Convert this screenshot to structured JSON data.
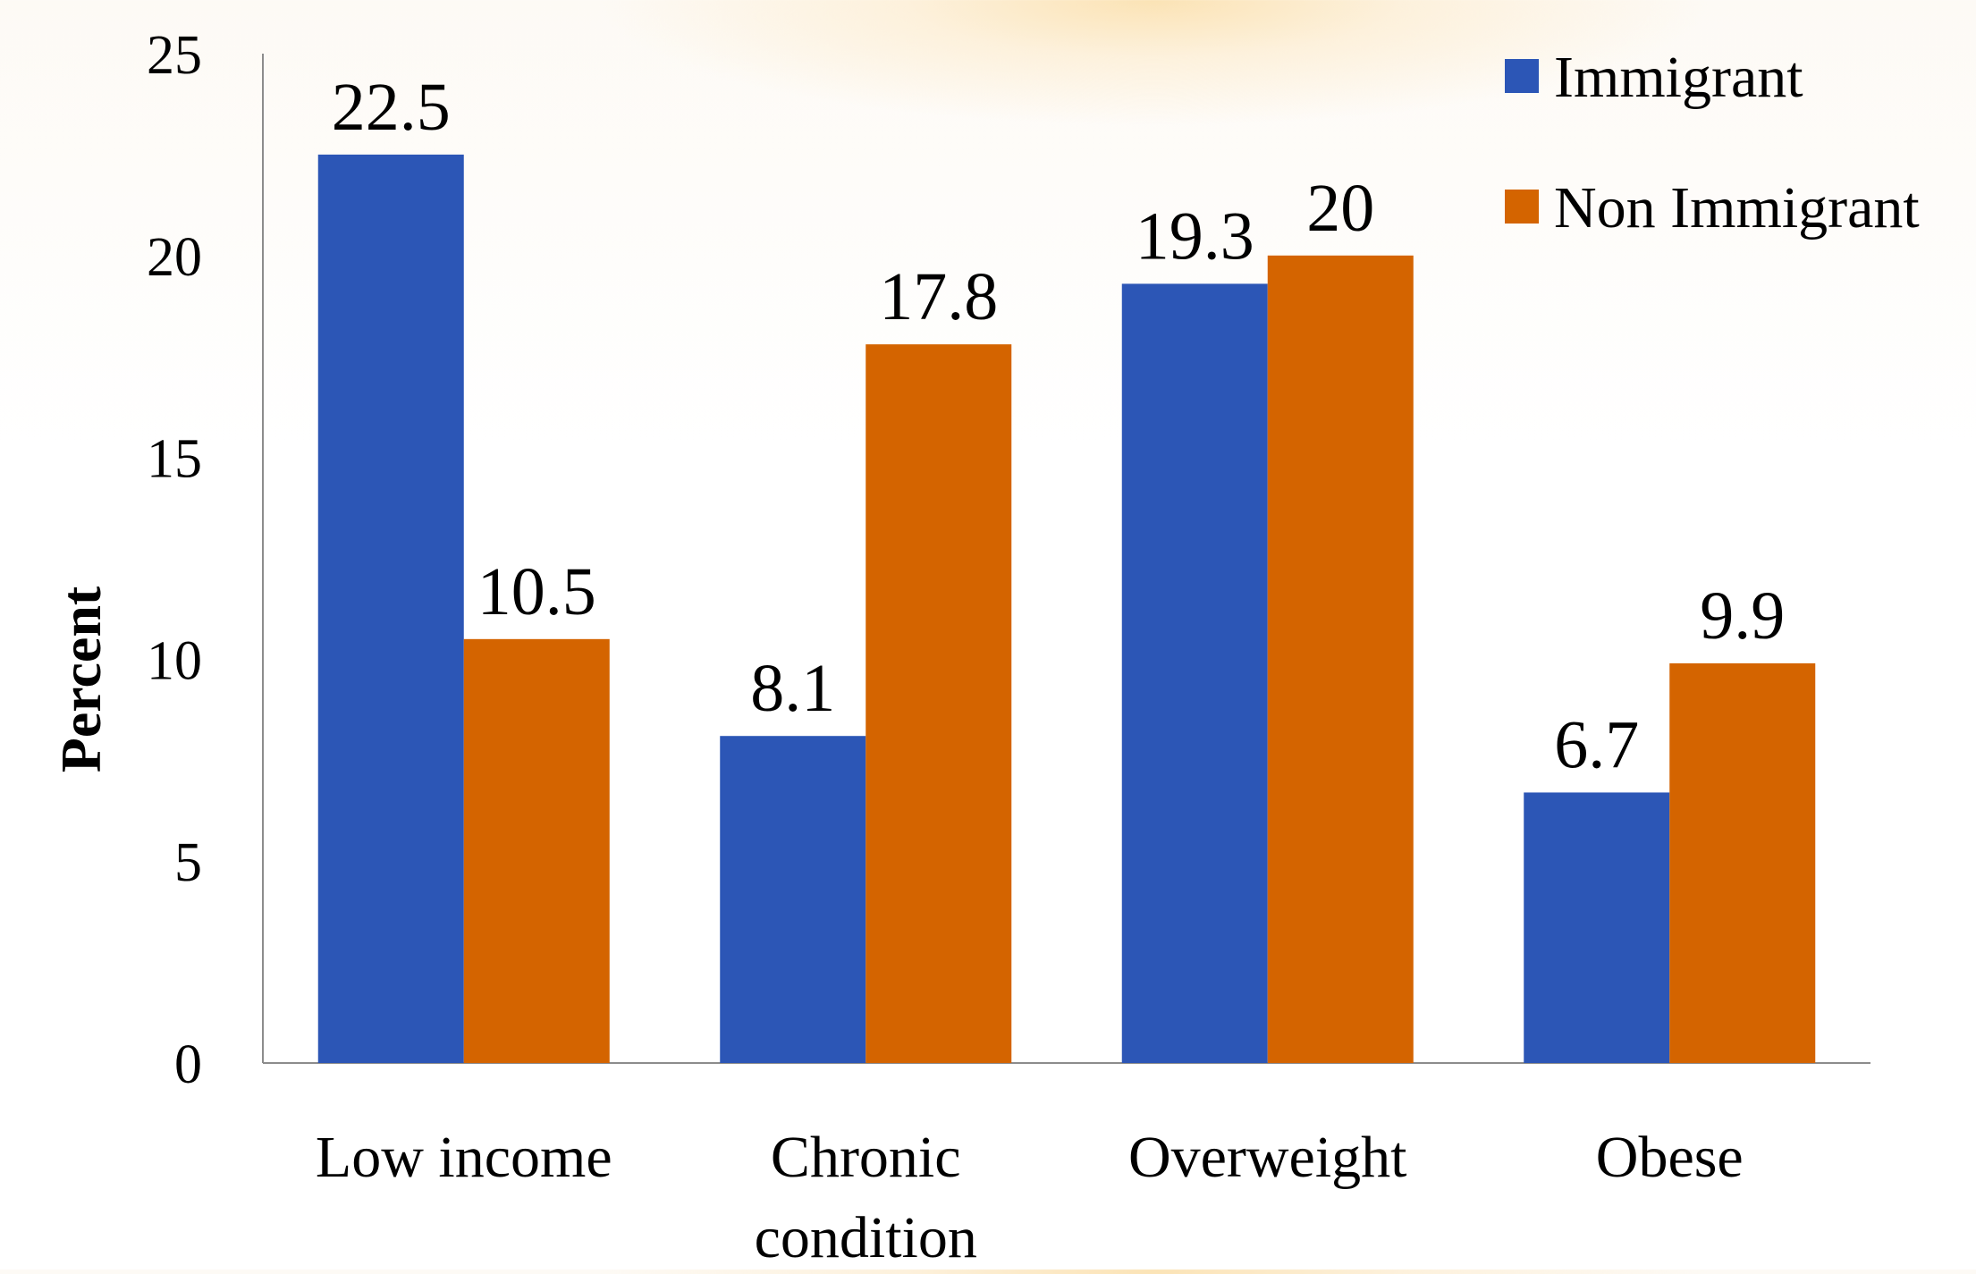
{
  "chart_data": {
    "type": "bar",
    "categories": [
      "Low income",
      "Chronic condition",
      "Overweight",
      "Obese"
    ],
    "category_lines": [
      [
        "Low income"
      ],
      [
        "Chronic",
        "condition"
      ],
      [
        "Overweight"
      ],
      [
        "Obese"
      ]
    ],
    "series": [
      {
        "name": "Immigrant",
        "values": [
          22.5,
          8.1,
          19.3,
          6.7
        ],
        "labels": [
          "22.5",
          "8.1",
          "19.3",
          "6.7"
        ],
        "color": "#2c56b6"
      },
      {
        "name": "Non Immigrant",
        "values": [
          10.5,
          17.8,
          20,
          9.9
        ],
        "labels": [
          "10.5",
          "17.8",
          "20",
          "9.9"
        ],
        "color": "#d46400"
      }
    ],
    "ylabel": "Percent",
    "ylim": [
      0,
      25
    ],
    "yticks": [
      "0",
      "5",
      "10",
      "15",
      "20",
      "25"
    ],
    "legend_position": "top-right",
    "grid": false
  }
}
